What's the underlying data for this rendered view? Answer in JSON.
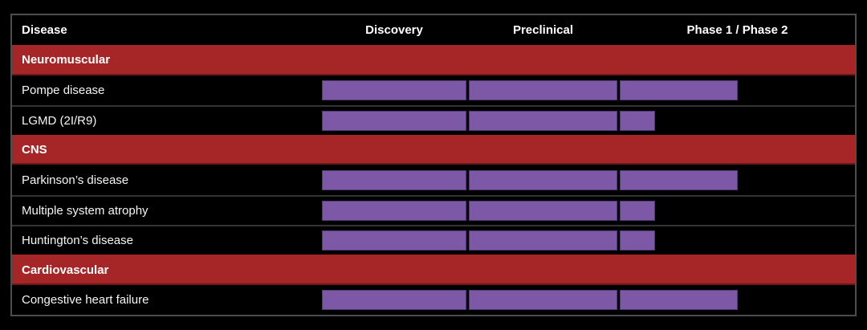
{
  "colors": {
    "page_background": "#000000",
    "section_band_red": "#a62627",
    "bar_purple": "#7c58a7",
    "table_border_gray": "#4d4d4d",
    "row_divider_gray": "#333333",
    "text_white": "#ffffff"
  },
  "table": {
    "header": {
      "disease_label": "Disease",
      "phase_labels": [
        "Discovery",
        "Preclinical",
        "Phase 1 / Phase 2"
      ]
    },
    "sections": [
      {
        "label": "Neuromuscular",
        "programs": [
          {
            "disease": "Pompe disease",
            "segments": [
              1,
              1,
              0.5
            ]
          },
          {
            "disease": "LGMD (2I/R9)",
            "segments": [
              1,
              1,
              0.15
            ]
          }
        ]
      },
      {
        "label": "CNS",
        "programs": [
          {
            "disease": "Parkinson’s disease",
            "segments": [
              1,
              1,
              0.5
            ]
          },
          {
            "disease": "Multiple system atrophy",
            "segments": [
              1,
              1,
              0.15
            ]
          },
          {
            "disease": "Huntington’s disease",
            "segments": [
              1,
              1,
              0.15
            ]
          }
        ]
      },
      {
        "label": "Cardiovascular",
        "programs": [
          {
            "disease": "Congestive heart failure",
            "segments": [
              1,
              1,
              0.5
            ]
          }
        ]
      }
    ]
  },
  "chart_data": {
    "type": "bar",
    "orientation": "horizontal",
    "title": "",
    "phases": [
      "Discovery",
      "Preclinical",
      "Phase 1 / Phase 2"
    ],
    "categories": [
      "Pompe disease",
      "LGMD (2I/R9)",
      "Parkinson’s disease",
      "Multiple system atrophy",
      "Huntington’s disease",
      "Congestive heart failure"
    ],
    "groups": [
      {
        "name": "Neuromuscular",
        "members": [
          "Pompe disease",
          "LGMD (2I/R9)"
        ]
      },
      {
        "name": "CNS",
        "members": [
          "Parkinson’s disease",
          "Multiple system atrophy",
          "Huntington’s disease"
        ]
      },
      {
        "name": "Cardiovascular",
        "members": [
          "Congestive heart failure"
        ]
      }
    ],
    "values": [
      2.5,
      2.15,
      2.5,
      2.15,
      2.15,
      2.5
    ],
    "value_note": "progress in phase units: 1 = end of Discovery, 2 = end of Preclinical, 3 = end of Phase 1 / Phase 2",
    "xlim": [
      0,
      3
    ],
    "legend": "none",
    "grid": "off"
  }
}
